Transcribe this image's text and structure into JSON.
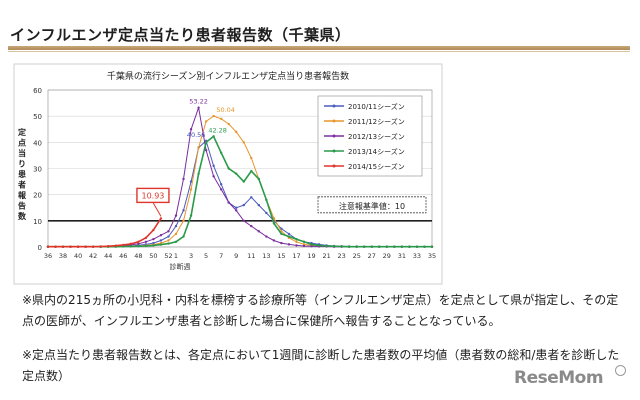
{
  "heading": "インフルエンザ定点当たり患者報告数（千葉県）",
  "notes": [
    "※県内の215ヵ所の小児科・内科を標榜する診療所等（インフルエンザ定点）を定点として県が指定し、その定点の医師が、インフルエンザ患者と診断した場合に保健所へ報告することとなっている。",
    "※定点当たり患者報告数とは、各定点において1週間に診断した患者数の平均値（患者数の総和/患者を診断した定点数）"
  ],
  "logo_text": "ReseMom",
  "chart_data": {
    "type": "line",
    "title": "千葉県の流行シーズン別インフルエンザ定点当り患者報告数",
    "ylabel": "定点当り患者報告数",
    "xlabel": "診断週",
    "ylim": [
      0,
      60
    ],
    "yticks": [
      0,
      10,
      20,
      30,
      40,
      50,
      60
    ],
    "xticks": [
      "36",
      "38",
      "40",
      "42",
      "44",
      "46",
      "48",
      "50",
      "52",
      "1",
      "3",
      "5",
      "7",
      "9",
      "11",
      "13",
      "15",
      "17",
      "19",
      "21",
      "23",
      "25",
      "27",
      "29",
      "31",
      "33",
      "35"
    ],
    "weeks": [
      "36",
      "37",
      "38",
      "39",
      "40",
      "41",
      "42",
      "43",
      "44",
      "45",
      "46",
      "47",
      "48",
      "49",
      "50",
      "51",
      "52",
      "1",
      "2",
      "3",
      "4",
      "5",
      "6",
      "7",
      "8",
      "9",
      "10",
      "11",
      "12",
      "13",
      "14",
      "15",
      "16",
      "17",
      "18",
      "19",
      "20",
      "21",
      "22",
      "23",
      "24",
      "25",
      "26",
      "27",
      "28",
      "29",
      "30",
      "31",
      "32",
      "33",
      "34",
      "35"
    ],
    "alert_threshold": 10,
    "alert_label": "注意報基準値：10",
    "callout_value": "10.93",
    "annotations": [
      {
        "text": "40.56",
        "color": "#3f4fb0"
      },
      {
        "text": "53.22",
        "color": "#7b2fa0"
      },
      {
        "text": "50.04",
        "color": "#e8962a"
      },
      {
        "text": "42.28",
        "color": "#2a9a4a"
      }
    ],
    "series": [
      {
        "name": "2010/11シーズン",
        "color": "#4a5bbf",
        "values": [
          0.1,
          0.1,
          0.1,
          0.1,
          0.1,
          0.1,
          0.1,
          0.1,
          0.2,
          0.2,
          0.3,
          0.4,
          0.6,
          1.0,
          1.5,
          2.5,
          4,
          8,
          14,
          25,
          38,
          40.56,
          31,
          24,
          17,
          15,
          16,
          19,
          16,
          13,
          10,
          7,
          5,
          3,
          2,
          1.5,
          1,
          0.6,
          0.4,
          0.3,
          0.2,
          0.2,
          0.1,
          0.1,
          0.1,
          0.1,
          0.1,
          0.1,
          0.1,
          0.1,
          0.1,
          0.1
        ]
      },
      {
        "name": "2011/12シーズン",
        "color": "#e8962a",
        "values": [
          0.1,
          0.1,
          0.1,
          0.1,
          0.1,
          0.1,
          0.1,
          0.1,
          0.1,
          0.2,
          0.2,
          0.3,
          0.4,
          0.6,
          0.9,
          1.5,
          2.5,
          5,
          10,
          22,
          38,
          48,
          50.04,
          49,
          47,
          44,
          40,
          34,
          26,
          18,
          11,
          6,
          3.5,
          2,
          1,
          0.6,
          0.4,
          0.3,
          0.2,
          0.2,
          0.1,
          0.1,
          0.1,
          0.1,
          0.1,
          0.1,
          0.1,
          0.1,
          0.1,
          0.1,
          0.1,
          0.1
        ]
      },
      {
        "name": "2012/13シーズン",
        "color": "#7b2fa0",
        "values": [
          0.1,
          0.1,
          0.1,
          0.1,
          0.1,
          0.1,
          0.1,
          0.1,
          0.2,
          0.3,
          0.5,
          0.8,
          1.2,
          2,
          3,
          4.5,
          6,
          12,
          26,
          45,
          53.22,
          37,
          27,
          22,
          17,
          14,
          10,
          8,
          6,
          4,
          2.5,
          1.5,
          1,
          0.6,
          0.4,
          0.3,
          0.2,
          0.2,
          0.1,
          0.1,
          0.1,
          0.1,
          0.1,
          0.1,
          0.1,
          0.1,
          0.1,
          0.1,
          0.1,
          0.1,
          0.1,
          0.1
        ]
      },
      {
        "name": "2013/14シーズン",
        "color": "#2a9a4a",
        "values": [
          0.1,
          0.1,
          0.1,
          0.1,
          0.1,
          0.1,
          0.1,
          0.1,
          0.1,
          0.1,
          0.2,
          0.2,
          0.3,
          0.4,
          0.6,
          0.9,
          1.3,
          2,
          4,
          12,
          28,
          40,
          42.28,
          36,
          30,
          28,
          25,
          29,
          26,
          18,
          9,
          5,
          4,
          3,
          2,
          1,
          0.6,
          0.4,
          0.3,
          0.2,
          0.1,
          0.1,
          0.1,
          0.1,
          0.1,
          0.1,
          0.1,
          0.1,
          0.1,
          0.1,
          0.1,
          0.1
        ]
      },
      {
        "name": "2014/15シーズン",
        "color": "#e0352b",
        "values": [
          0.1,
          0.1,
          0.1,
          0.1,
          0.1,
          0.1,
          0.1,
          0.2,
          0.3,
          0.5,
          0.8,
          1.2,
          2.0,
          3.5,
          6.5,
          10.93
        ]
      }
    ]
  }
}
